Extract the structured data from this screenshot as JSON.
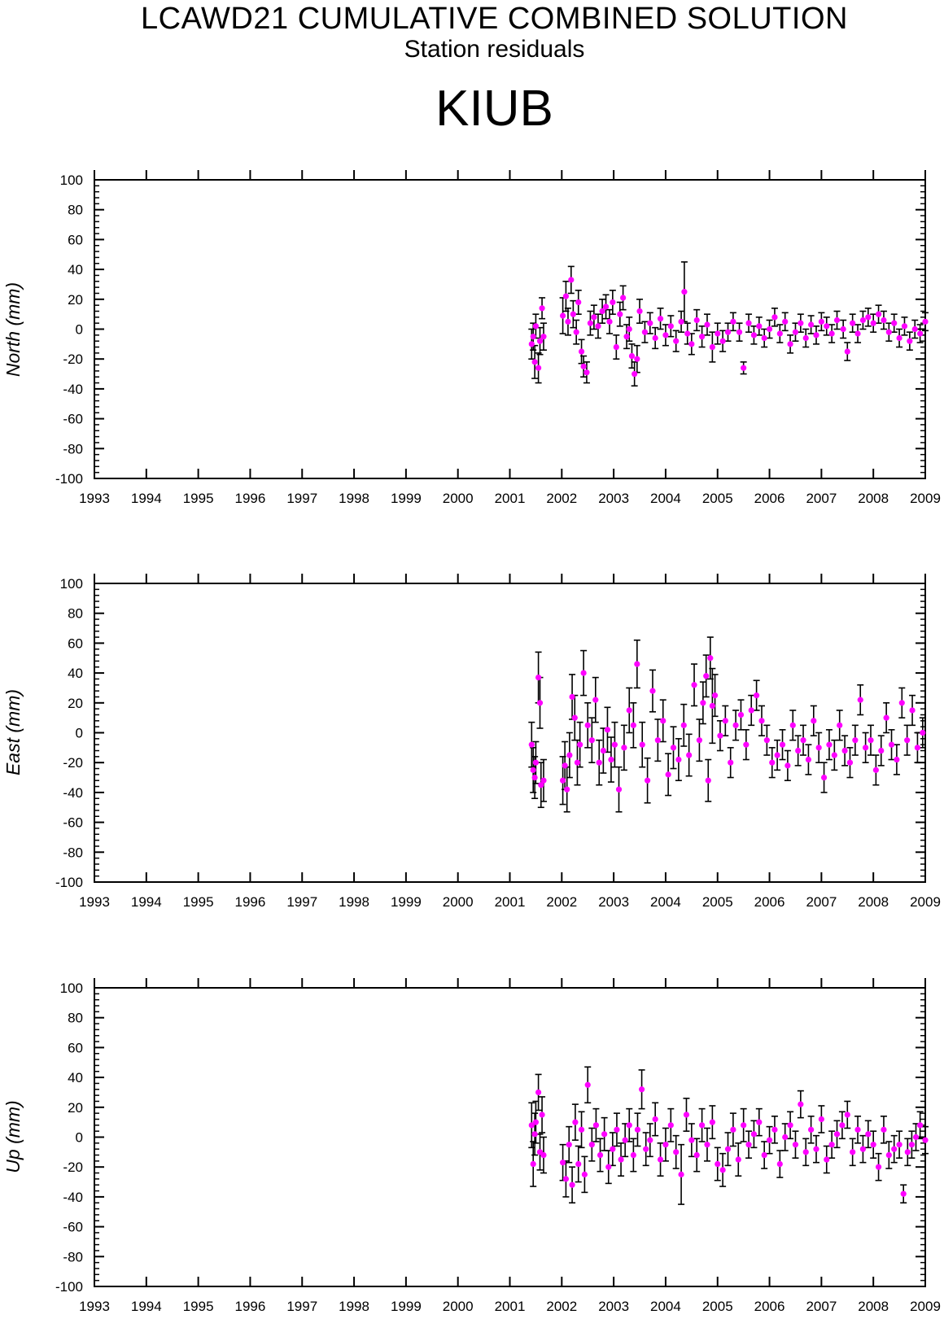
{
  "header": {
    "title": "LCAWD21 CUMULATIVE COMBINED SOLUTION",
    "subtitle": "Station residuals",
    "station": "KIUB"
  },
  "colors": {
    "point": "#ff00ff",
    "errorbar": "#000000",
    "axis": "#000000",
    "background": "#ffffff"
  },
  "chart_data": [
    {
      "type": "scatter",
      "ylabel": "North (mm)",
      "xlim": [
        1993,
        2009
      ],
      "ylim": [
        -100,
        100
      ],
      "xticks": [
        "1993",
        "1994",
        "1995",
        "1996",
        "1997",
        "1998",
        "1999",
        "2000",
        "2001",
        "2002",
        "2003",
        "2004",
        "2005",
        "2006",
        "2007",
        "2008",
        "2009"
      ],
      "yticks": [
        "100",
        "80",
        "60",
        "40",
        "20",
        "0",
        "-20",
        "-40",
        "-60",
        "-80",
        "-100"
      ],
      "grid": false,
      "series": [
        {
          "x": [
            2001.42,
            2001.45,
            2001.48,
            2001.5,
            2001.55,
            2001.58,
            2001.62,
            2001.65,
            2002.02,
            2002.08,
            2002.12,
            2002.18,
            2002.22,
            2002.28,
            2002.32,
            2002.38,
            2002.42,
            2002.48,
            2002.55,
            2002.62,
            2002.7,
            2002.78,
            2002.85,
            2002.92,
            2002.98,
            2003.05,
            2003.12,
            2003.18,
            2003.25,
            2003.3,
            2003.35,
            2003.4,
            2003.45,
            2003.5,
            2003.6,
            2003.7,
            2003.8,
            2003.9,
            2004.0,
            2004.1,
            2004.2,
            2004.3,
            2004.36,
            2004.42,
            2004.5,
            2004.6,
            2004.7,
            2004.8,
            2004.9,
            2005.0,
            2005.1,
            2005.2,
            2005.3,
            2005.42,
            2005.5,
            2005.6,
            2005.7,
            2005.8,
            2005.9,
            2006.0,
            2006.1,
            2006.2,
            2006.3,
            2006.4,
            2006.5,
            2006.6,
            2006.7,
            2006.8,
            2006.9,
            2007.0,
            2007.1,
            2007.2,
            2007.3,
            2007.42,
            2007.5,
            2007.6,
            2007.7,
            2007.8,
            2007.9,
            2008.0,
            2008.1,
            2008.2,
            2008.3,
            2008.4,
            2008.5,
            2008.6,
            2008.7,
            2008.8,
            2008.9,
            2009.0
          ],
          "y": [
            -10,
            -5,
            -22,
            2,
            -26,
            -8,
            14,
            -5,
            9,
            22,
            5,
            33,
            10,
            -2,
            18,
            -15,
            -25,
            -29,
            4,
            8,
            2,
            12,
            15,
            5,
            18,
            -12,
            10,
            21,
            -5,
            0,
            -18,
            -30,
            -20,
            12,
            -2,
            4,
            -6,
            7,
            -4,
            2,
            -8,
            5,
            25,
            -3,
            -10,
            6,
            -5,
            3,
            -12,
            -3,
            -8,
            -2,
            5,
            -2,
            -26,
            4,
            -4,
            2,
            -6,
            0,
            8,
            -3,
            5,
            -10,
            -2,
            4,
            -6,
            3,
            -4,
            5,
            2,
            -3,
            6,
            0,
            -15,
            4,
            -3,
            6,
            8,
            4,
            10,
            6,
            -2,
            4,
            -6,
            2,
            -8,
            0,
            -3,
            5
          ],
          "err": [
            10,
            9,
            11,
            8,
            10,
            9,
            7,
            9,
            12,
            10,
            9,
            9,
            9,
            8,
            8,
            8,
            7,
            7,
            8,
            8,
            8,
            8,
            8,
            8,
            8,
            8,
            8,
            8,
            8,
            8,
            8,
            8,
            9,
            8,
            7,
            7,
            7,
            7,
            7,
            7,
            7,
            7,
            20,
            7,
            7,
            7,
            7,
            7,
            10,
            7,
            7,
            6,
            6,
            6,
            4,
            6,
            6,
            6,
            6,
            6,
            6,
            6,
            6,
            6,
            6,
            6,
            6,
            6,
            6,
            6,
            6,
            6,
            6,
            6,
            6,
            6,
            6,
            6,
            6,
            6,
            6,
            6,
            6,
            6,
            6,
            6,
            6,
            6,
            6,
            6
          ]
        }
      ]
    },
    {
      "type": "scatter",
      "ylabel": "East (mm)",
      "xlim": [
        1993,
        2009
      ],
      "ylim": [
        -100,
        100
      ],
      "xticks": [
        "1993",
        "1994",
        "1995",
        "1996",
        "1997",
        "1998",
        "1999",
        "2000",
        "2001",
        "2002",
        "2003",
        "2004",
        "2005",
        "2006",
        "2007",
        "2008",
        "2009"
      ],
      "yticks": [
        "100",
        "80",
        "60",
        "40",
        "20",
        "0",
        "-20",
        "-40",
        "-60",
        "-80",
        "-100"
      ],
      "grid": false,
      "series": [
        {
          "x": [
            2001.42,
            2001.45,
            2001.48,
            2001.5,
            2001.55,
            2001.58,
            2001.6,
            2001.65,
            2002.02,
            2002.06,
            2002.1,
            2002.15,
            2002.2,
            2002.25,
            2002.3,
            2002.35,
            2002.42,
            2002.5,
            2002.58,
            2002.65,
            2002.72,
            2002.8,
            2002.88,
            2002.95,
            2003.02,
            2003.1,
            2003.2,
            2003.3,
            2003.38,
            2003.45,
            2003.55,
            2003.65,
            2003.75,
            2003.85,
            2003.95,
            2004.05,
            2004.15,
            2004.25,
            2004.35,
            2004.45,
            2004.55,
            2004.65,
            2004.72,
            2004.78,
            2004.82,
            2004.86,
            2004.9,
            2004.95,
            2005.05,
            2005.15,
            2005.25,
            2005.35,
            2005.45,
            2005.55,
            2005.65,
            2005.75,
            2005.85,
            2005.95,
            2006.05,
            2006.15,
            2006.25,
            2006.35,
            2006.45,
            2006.55,
            2006.65,
            2006.75,
            2006.85,
            2006.95,
            2007.05,
            2007.15,
            2007.25,
            2007.35,
            2007.45,
            2007.55,
            2007.65,
            2007.75,
            2007.85,
            2007.95,
            2008.05,
            2008.15,
            2008.25,
            2008.35,
            2008.45,
            2008.55,
            2008.65,
            2008.75,
            2008.85,
            2008.95
          ],
          "y": [
            -8,
            -25,
            -30,
            -20,
            37,
            20,
            -35,
            -32,
            -32,
            -22,
            -38,
            -15,
            24,
            10,
            -20,
            -8,
            40,
            5,
            -5,
            22,
            -20,
            -12,
            2,
            -18,
            -8,
            -38,
            -10,
            15,
            5,
            46,
            -8,
            -32,
            28,
            -5,
            8,
            -28,
            -10,
            -18,
            5,
            -15,
            32,
            -5,
            20,
            38,
            -32,
            50,
            18,
            25,
            -2,
            8,
            -20,
            5,
            12,
            -8,
            15,
            25,
            8,
            -5,
            -20,
            -15,
            -8,
            -22,
            5,
            -12,
            -5,
            -18,
            8,
            -10,
            -30,
            -8,
            -15,
            5,
            -12,
            -20,
            -5,
            22,
            -10,
            -5,
            -25,
            -12,
            10,
            -8,
            -18,
            20,
            -5,
            15,
            -10,
            0
          ],
          "err": [
            15,
            15,
            14,
            14,
            17,
            17,
            15,
            14,
            16,
            16,
            15,
            15,
            15,
            15,
            15,
            15,
            15,
            15,
            15,
            15,
            15,
            15,
            15,
            15,
            15,
            15,
            15,
            15,
            15,
            16,
            15,
            15,
            14,
            14,
            14,
            14,
            14,
            14,
            14,
            14,
            14,
            14,
            14,
            14,
            14,
            14,
            25,
            14,
            10,
            10,
            10,
            10,
            10,
            10,
            10,
            10,
            10,
            10,
            10,
            10,
            10,
            10,
            10,
            10,
            10,
            10,
            10,
            10,
            10,
            10,
            10,
            10,
            10,
            10,
            10,
            10,
            10,
            10,
            10,
            10,
            10,
            10,
            10,
            10,
            10,
            10,
            10,
            10
          ]
        }
      ]
    },
    {
      "type": "scatter",
      "ylabel": "Up (mm)",
      "xlim": [
        1993,
        2009
      ],
      "ylim": [
        -100,
        100
      ],
      "xticks": [
        "1993",
        "1994",
        "1995",
        "1996",
        "1997",
        "1998",
        "1999",
        "2000",
        "2001",
        "2002",
        "2003",
        "2004",
        "2005",
        "2006",
        "2007",
        "2008",
        "2009"
      ],
      "yticks": [
        "100",
        "80",
        "60",
        "40",
        "20",
        "0",
        "-20",
        "-40",
        "-60",
        "-80",
        "-100"
      ],
      "grid": false,
      "series": [
        {
          "x": [
            2001.42,
            2001.45,
            2001.48,
            2001.5,
            2001.55,
            2001.58,
            2001.62,
            2001.65,
            2002.02,
            2002.08,
            2002.14,
            2002.2,
            2002.26,
            2002.32,
            2002.38,
            2002.44,
            2002.5,
            2002.58,
            2002.66,
            2002.74,
            2002.82,
            2002.9,
            2002.98,
            2003.06,
            2003.14,
            2003.22,
            2003.3,
            2003.38,
            2003.46,
            2003.54,
            2003.62,
            2003.7,
            2003.8,
            2003.9,
            2004.0,
            2004.1,
            2004.2,
            2004.3,
            2004.4,
            2004.5,
            2004.6,
            2004.7,
            2004.8,
            2004.9,
            2005.0,
            2005.1,
            2005.2,
            2005.3,
            2005.4,
            2005.5,
            2005.6,
            2005.7,
            2005.8,
            2005.9,
            2006.0,
            2006.1,
            2006.2,
            2006.3,
            2006.4,
            2006.5,
            2006.6,
            2006.7,
            2006.8,
            2006.9,
            2007.0,
            2007.1,
            2007.2,
            2007.3,
            2007.4,
            2007.5,
            2007.6,
            2007.7,
            2007.8,
            2007.9,
            2008.0,
            2008.1,
            2008.2,
            2008.3,
            2008.4,
            2008.5,
            2008.58,
            2008.66,
            2008.74,
            2008.82,
            2008.9,
            2009.0
          ],
          "y": [
            8,
            -18,
            2,
            10,
            30,
            -10,
            15,
            -12,
            -17,
            -28,
            -5,
            -32,
            10,
            -18,
            5,
            -25,
            35,
            -5,
            8,
            -12,
            2,
            -20,
            -8,
            5,
            -15,
            -2,
            8,
            -12,
            5,
            32,
            -8,
            -2,
            12,
            -15,
            -5,
            8,
            -10,
            -25,
            15,
            -2,
            -12,
            8,
            -5,
            10,
            -18,
            -22,
            -8,
            5,
            -15,
            8,
            -5,
            2,
            10,
            -12,
            -2,
            5,
            -18,
            0,
            8,
            -5,
            22,
            -10,
            5,
            -8,
            12,
            -15,
            -5,
            2,
            8,
            15,
            -10,
            5,
            -8,
            2,
            -5,
            -20,
            5,
            -12,
            -8,
            -5,
            -38,
            -10,
            -5,
            0,
            8,
            -2
          ],
          "err": [
            15,
            15,
            14,
            14,
            12,
            12,
            12,
            12,
            12,
            12,
            12,
            12,
            12,
            12,
            12,
            12,
            12,
            11,
            11,
            11,
            11,
            11,
            11,
            11,
            11,
            11,
            11,
            11,
            11,
            13,
            11,
            11,
            11,
            11,
            11,
            11,
            11,
            20,
            11,
            11,
            11,
            11,
            11,
            11,
            11,
            11,
            11,
            11,
            11,
            11,
            9,
            9,
            9,
            9,
            9,
            9,
            9,
            9,
            9,
            9,
            9,
            9,
            9,
            9,
            9,
            9,
            9,
            9,
            9,
            9,
            9,
            9,
            9,
            9,
            9,
            9,
            9,
            9,
            9,
            9,
            6,
            9,
            9,
            9,
            9,
            9
          ]
        }
      ]
    }
  ]
}
